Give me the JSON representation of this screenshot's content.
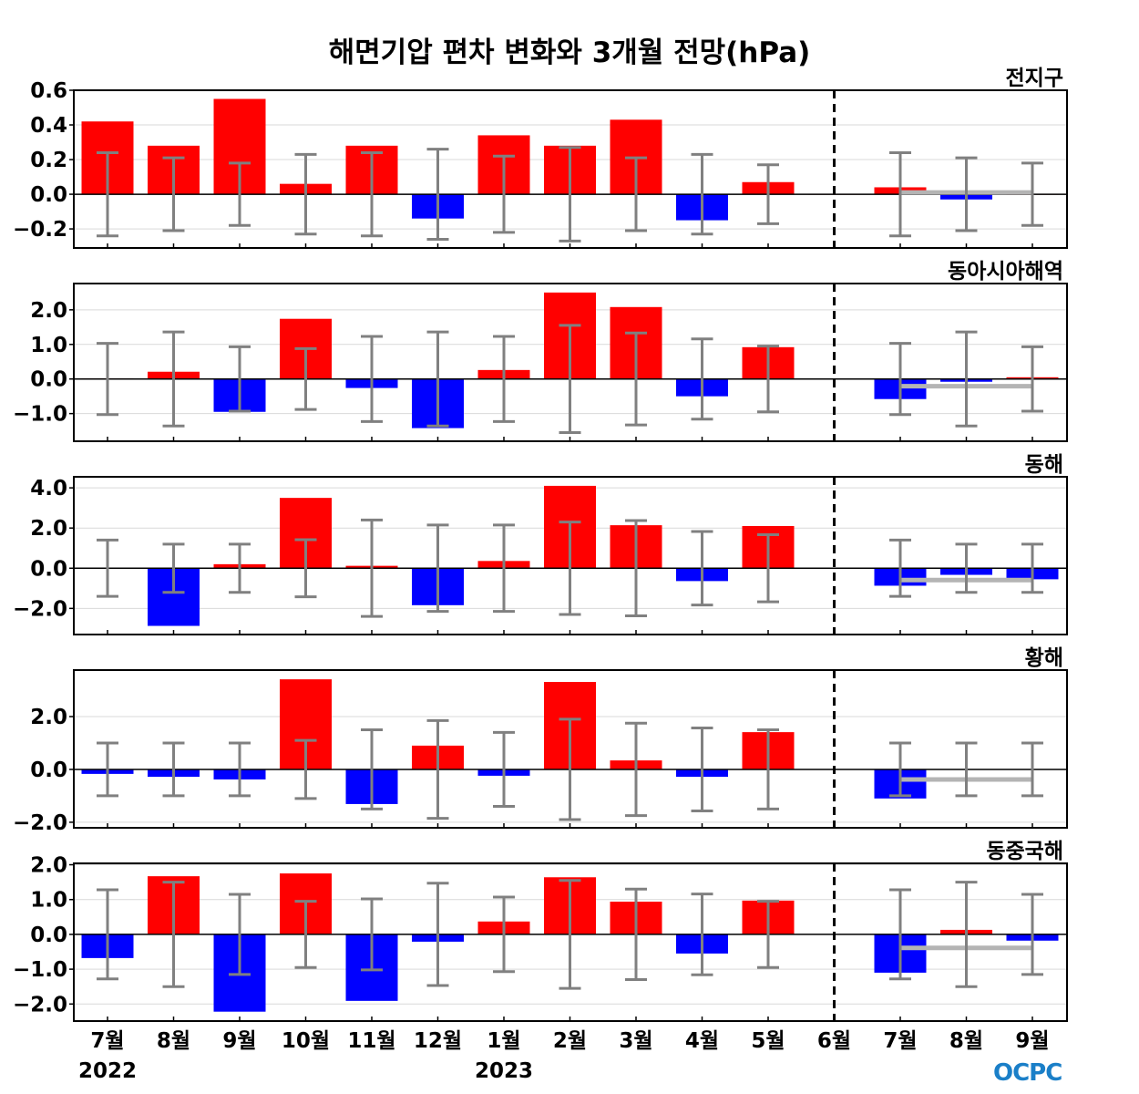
{
  "chart_data": [
    {
      "type": "bar",
      "title": "해면기압 편차 변화와 3개월 전망(hPa)",
      "panel_label": "전지구",
      "categories": [
        "7월",
        "8월",
        "9월",
        "10월",
        "11월",
        "12월",
        "1월",
        "2월",
        "3월",
        "4월",
        "5월",
        "6월",
        "7월",
        "8월",
        "9월"
      ],
      "year_labels": [
        {
          "category_index": 0,
          "text": "2022"
        },
        {
          "category_index": 6,
          "text": "2023"
        }
      ],
      "values": [
        0.42,
        0.28,
        0.55,
        0.06,
        0.28,
        -0.14,
        0.34,
        0.28,
        0.43,
        -0.15,
        0.07,
        0.0,
        0.04,
        -0.03,
        0.0
      ],
      "error": [
        0.24,
        0.21,
        0.18,
        0.23,
        0.24,
        0.26,
        0.22,
        0.27,
        0.21,
        0.23,
        0.17,
        null,
        0.24,
        0.21,
        0.18
      ],
      "forecast_mean": 0.01,
      "yticks": [
        0.6,
        0.4,
        0.2,
        0.0,
        -0.2
      ],
      "tick_labels": [
        "0.6",
        "0.4",
        "0.2",
        "0.0",
        "−0.2"
      ],
      "ylim": [
        -0.31,
        0.6
      ]
    },
    {
      "type": "bar",
      "panel_label": "동아시아해역",
      "values": [
        0.02,
        0.21,
        -0.95,
        1.74,
        -0.26,
        -1.42,
        0.26,
        2.5,
        2.08,
        -0.5,
        0.92,
        0.0,
        -0.58,
        -0.08,
        0.05
      ],
      "error": [
        1.03,
        1.36,
        0.93,
        0.88,
        1.23,
        1.36,
        1.23,
        1.55,
        1.33,
        1.16,
        0.95,
        null,
        1.03,
        1.36,
        0.93
      ],
      "forecast_mean": -0.21,
      "yticks": [
        2.0,
        1.0,
        0.0,
        -1.0
      ],
      "tick_labels": [
        "2.0",
        "1.0",
        "0.0",
        "−1.0"
      ],
      "ylim": [
        -1.8,
        2.76
      ]
    },
    {
      "type": "bar",
      "panel_label": "동해",
      "values": [
        0.02,
        -2.87,
        0.2,
        3.5,
        0.12,
        -1.84,
        0.36,
        4.1,
        2.14,
        -0.64,
        2.1,
        0.0,
        -0.87,
        -0.33,
        -0.55
      ],
      "error": [
        1.4,
        1.2,
        1.2,
        1.42,
        2.4,
        2.15,
        2.15,
        2.3,
        2.37,
        1.83,
        1.67,
        null,
        1.4,
        1.2,
        1.2
      ],
      "forecast_mean": -0.59,
      "yticks": [
        4.0,
        2.0,
        0.0,
        -2.0
      ],
      "tick_labels": [
        "4.0",
        "2.0",
        "0.0",
        "−2.0"
      ],
      "ylim": [
        -3.3,
        4.55
      ]
    },
    {
      "type": "bar",
      "panel_label": "황해",
      "values": [
        -0.17,
        -0.28,
        -0.38,
        3.41,
        -1.31,
        0.9,
        -0.24,
        3.31,
        0.34,
        -0.28,
        1.41,
        0.0,
        -1.1,
        0.0,
        0.0
      ],
      "error": [
        1.0,
        1.0,
        1.0,
        1.1,
        1.5,
        1.85,
        1.4,
        1.9,
        1.75,
        1.57,
        1.5,
        null,
        1.0,
        1.0,
        1.0
      ],
      "forecast_mean": -0.38,
      "yticks": [
        2.0,
        0.0,
        -2.0
      ],
      "tick_labels": [
        "2.0",
        "0.0",
        "−2.0"
      ],
      "ylim": [
        -2.21,
        3.76
      ]
    },
    {
      "type": "bar",
      "panel_label": "동중국해",
      "values": [
        -0.68,
        1.67,
        -2.22,
        1.75,
        -1.91,
        -0.21,
        0.37,
        1.64,
        0.94,
        -0.55,
        0.97,
        0.0,
        -1.1,
        0.13,
        -0.18
      ],
      "error": [
        1.28,
        1.5,
        1.15,
        0.95,
        1.02,
        1.47,
        1.07,
        1.55,
        1.3,
        1.16,
        0.95,
        null,
        1.28,
        1.5,
        1.15
      ],
      "forecast_mean": -0.39,
      "yticks": [
        2.0,
        1.0,
        0.0,
        -1.0,
        -2.0
      ],
      "tick_labels": [
        "2.0",
        "1.0",
        "0.0",
        "−1.0",
        "−2.0"
      ],
      "ylim": [
        -2.49,
        2.04
      ]
    }
  ],
  "colors": {
    "positive": "#ff0000",
    "negative": "#0000ff",
    "error_bar": "#808080",
    "forecast_mean": "#b4b4b4",
    "grid": "#d9d9d9"
  },
  "forecast_divider_category": "6월",
  "logo": "OCPC"
}
